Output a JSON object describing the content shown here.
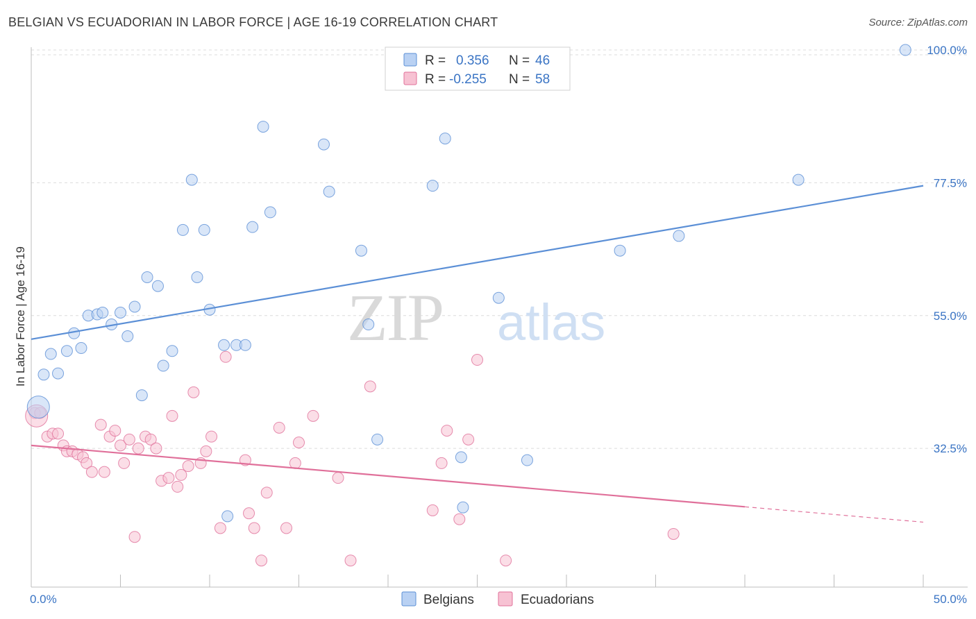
{
  "title": "BELGIAN VS ECUADORIAN IN LABOR FORCE | AGE 16-19 CORRELATION CHART",
  "source": "Source: ZipAtlas.com",
  "watermark": {
    "zip": "ZIP",
    "atlas": "atlas"
  },
  "chart_data": {
    "type": "scatter",
    "ylabel": "In Labor Force | Age 16-19",
    "xlim": [
      0,
      50
    ],
    "ylim": [
      9,
      102
    ],
    "x_tick_labels": [
      "0.0%",
      "50.0%"
    ],
    "y_ticks": [
      32.5,
      55.0,
      77.5,
      100.0
    ],
    "y_tick_labels": [
      "32.5%",
      "55.0%",
      "77.5%",
      "100.0%"
    ],
    "colors": {
      "belgians": "#5b8fd6",
      "belgians_fill": "#b9d1f3",
      "ecuadorians": "#e0709a",
      "ecuadorians_fill": "#f7c2d3",
      "axis_text": "#3a74c4"
    },
    "legend_stats": [
      {
        "r_label": "R =",
        "r_value": "0.356",
        "n_label": "N =",
        "n_value": "46"
      },
      {
        "r_label": "R =",
        "r_value": "-0.255",
        "n_label": "N =",
        "n_value": "58"
      }
    ],
    "series": [
      {
        "name": "Belgians",
        "trend": {
          "x": [
            0,
            50
          ],
          "y": [
            51.0,
            77.0
          ],
          "dash_from": null
        },
        "points": [
          [
            0.4,
            39.5
          ],
          [
            0.7,
            45
          ],
          [
            1.1,
            48.5
          ],
          [
            1.5,
            45.2
          ],
          [
            2.0,
            49
          ],
          [
            2.4,
            52
          ],
          [
            2.8,
            49.5
          ],
          [
            3.2,
            55
          ],
          [
            3.7,
            55.2
          ],
          [
            4.0,
            55.5
          ],
          [
            4.5,
            53.5
          ],
          [
            5.0,
            55.5
          ],
          [
            5.4,
            51.5
          ],
          [
            5.8,
            56.5
          ],
          [
            6.2,
            41.5
          ],
          [
            6.5,
            61.5
          ],
          [
            7.1,
            60
          ],
          [
            7.4,
            46.5
          ],
          [
            7.9,
            49
          ],
          [
            8.5,
            69.5
          ],
          [
            9.0,
            78
          ],
          [
            9.3,
            61.5
          ],
          [
            9.7,
            69.5
          ],
          [
            10.0,
            56
          ],
          [
            10.8,
            50
          ],
          [
            11.0,
            21
          ],
          [
            11.5,
            50
          ],
          [
            12.0,
            50
          ],
          [
            12.4,
            70
          ],
          [
            13.0,
            87
          ],
          [
            13.4,
            72.5
          ],
          [
            16.4,
            84
          ],
          [
            16.7,
            76
          ],
          [
            18.5,
            66
          ],
          [
            18.9,
            53.5
          ],
          [
            19.4,
            34
          ],
          [
            22.5,
            77
          ],
          [
            23.2,
            85
          ],
          [
            24.1,
            31
          ],
          [
            24.2,
            22.5
          ],
          [
            26.2,
            58
          ],
          [
            27.8,
            30.5
          ],
          [
            33.0,
            66
          ],
          [
            36.3,
            68.5
          ],
          [
            43.0,
            78
          ],
          [
            49.0,
            100
          ]
        ]
      },
      {
        "name": "Ecuadorians",
        "trend": {
          "x": [
            0,
            50
          ],
          "y": [
            33.0,
            20.0
          ],
          "dash_from": 40.0
        },
        "points": [
          [
            0.2,
            38.5
          ],
          [
            0.5,
            38.5
          ],
          [
            0.9,
            34.5
          ],
          [
            1.2,
            35
          ],
          [
            1.5,
            35
          ],
          [
            1.8,
            33
          ],
          [
            2.0,
            32
          ],
          [
            2.3,
            32
          ],
          [
            2.6,
            31.5
          ],
          [
            2.9,
            31
          ],
          [
            3.1,
            30
          ],
          [
            3.4,
            28.5
          ],
          [
            3.9,
            36.5
          ],
          [
            4.1,
            28.5
          ],
          [
            4.4,
            34.5
          ],
          [
            4.7,
            35.5
          ],
          [
            5.0,
            33
          ],
          [
            5.2,
            30
          ],
          [
            5.5,
            34
          ],
          [
            5.8,
            17.5
          ],
          [
            6.0,
            32.5
          ],
          [
            6.4,
            34.5
          ],
          [
            6.7,
            34
          ],
          [
            7.0,
            32.5
          ],
          [
            7.3,
            27
          ],
          [
            7.7,
            27.5
          ],
          [
            7.9,
            38
          ],
          [
            8.2,
            26
          ],
          [
            8.4,
            28
          ],
          [
            8.8,
            29.5
          ],
          [
            9.1,
            42
          ],
          [
            9.5,
            30
          ],
          [
            9.8,
            32
          ],
          [
            10.1,
            34.5
          ],
          [
            10.6,
            19
          ],
          [
            10.9,
            48
          ],
          [
            12.0,
            30.5
          ],
          [
            12.2,
            21.5
          ],
          [
            12.5,
            19
          ],
          [
            12.9,
            13.5
          ],
          [
            13.2,
            25
          ],
          [
            13.9,
            36
          ],
          [
            14.3,
            19
          ],
          [
            14.8,
            30
          ],
          [
            15.0,
            33.5
          ],
          [
            15.8,
            38
          ],
          [
            17.2,
            27.5
          ],
          [
            17.9,
            13.5
          ],
          [
            19.0,
            43
          ],
          [
            22.5,
            22
          ],
          [
            23.0,
            30
          ],
          [
            23.3,
            35.5
          ],
          [
            24.0,
            20.5
          ],
          [
            24.5,
            34
          ],
          [
            26.6,
            13.5
          ],
          [
            25.0,
            47.5
          ],
          [
            36.0,
            18
          ],
          [
            0.3,
            38
          ]
        ]
      }
    ],
    "legend_bottom": [
      "Belgians",
      "Ecuadorians"
    ]
  }
}
